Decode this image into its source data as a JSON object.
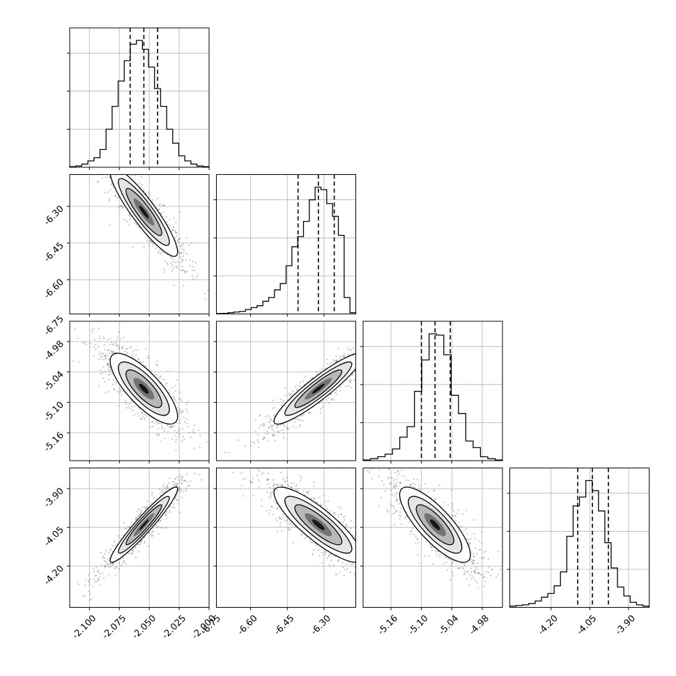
{
  "chart_data": {
    "type": "corner",
    "title": "",
    "parameters": [
      {
        "ticks": [
          "-2.100",
          "-2.075",
          "-2.050",
          "-2.025",
          "-2.000"
        ],
        "tick_values": [
          -2.1,
          -2.075,
          -2.05,
          -2.025,
          -2.0
        ],
        "range": [
          -2.1165,
          -2.0
        ],
        "quantiles": [
          -2.066,
          -2.0545,
          -2.043
        ],
        "hist": [
          0.005,
          0.01,
          0.025,
          0.05,
          0.075,
          0.14,
          0.3,
          0.48,
          0.68,
          0.84,
          0.97,
          1.0,
          0.93,
          0.79,
          0.62,
          0.48,
          0.3,
          0.19,
          0.09,
          0.05,
          0.025,
          0.01,
          0.005
        ]
      },
      {
        "ticks": [
          "-6.75",
          "-6.60",
          "-6.45",
          "-6.30"
        ],
        "tick_values": [
          -6.75,
          -6.6,
          -6.45,
          -6.3
        ],
        "range": [
          -6.74,
          -6.17
        ],
        "quantiles": [
          -6.406,
          -6.323,
          -6.258
        ],
        "hist": [
          0.003,
          0.005,
          0.01,
          0.015,
          0.02,
          0.035,
          0.05,
          0.065,
          0.1,
          0.13,
          0.19,
          0.24,
          0.38,
          0.53,
          0.61,
          0.73,
          0.9,
          1.0,
          0.98,
          0.87,
          0.77,
          0.62,
          0.13,
          0.01
        ]
      },
      {
        "ticks": [
          "-5.16",
          "-5.10",
          "-5.04",
          "-4.98"
        ],
        "tick_values": [
          -5.16,
          -5.1,
          -5.04,
          -4.98
        ],
        "range": [
          -5.215,
          -4.94
        ],
        "quantiles": [
          -5.1,
          -5.073,
          -5.043
        ],
        "hist": [
          0.005,
          0.015,
          0.03,
          0.05,
          0.09,
          0.18,
          0.26,
          0.53,
          0.77,
          0.97,
          0.96,
          0.81,
          0.5,
          0.36,
          0.15,
          0.1,
          0.03,
          0.015,
          0.005
        ]
      },
      {
        "ticks": [
          "-4.20",
          "-4.05",
          "-3.90"
        ],
        "tick_values": [
          -4.2,
          -4.05,
          -3.9
        ],
        "range": [
          -4.36,
          -3.82
        ],
        "quantiles": [
          -4.097,
          -4.04,
          -3.978
        ],
        "hist": [
          0.01,
          0.015,
          0.02,
          0.03,
          0.05,
          0.08,
          0.11,
          0.17,
          0.28,
          0.56,
          0.8,
          0.87,
          1.0,
          0.92,
          0.76,
          0.51,
          0.31,
          0.16,
          0.09,
          0.04,
          0.02,
          0.01
        ]
      }
    ],
    "correlations": {
      "1-0": -0.9,
      "2-0": -0.78,
      "2-1": 0.92,
      "3-0": 0.95,
      "3-1": -0.85,
      "3-2": -0.8
    },
    "grid": true,
    "colors": {
      "line": "#000000",
      "grid": "#b0b0b0",
      "points": "#555555"
    }
  }
}
